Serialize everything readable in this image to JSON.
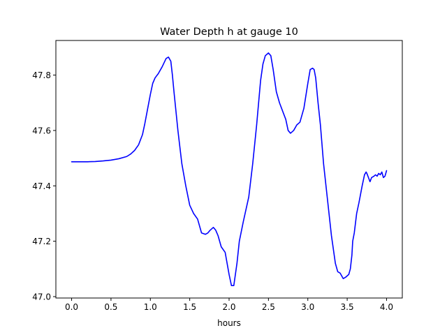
{
  "chart_data": {
    "type": "line",
    "title": "Water Depth h at gauge 10",
    "xlabel": "hours",
    "ylabel": "",
    "xlim": [
      -0.2,
      4.2
    ],
    "ylim": [
      46.995,
      47.925
    ],
    "xticks": [
      0.0,
      0.5,
      1.0,
      1.5,
      2.0,
      2.5,
      3.0,
      3.5,
      4.0
    ],
    "xtick_labels": [
      "0.0",
      "0.5",
      "1.0",
      "1.5",
      "2.0",
      "2.5",
      "3.0",
      "3.5",
      "4.0"
    ],
    "yticks": [
      47.0,
      47.2,
      47.4,
      47.6,
      47.8
    ],
    "ytick_labels": [
      "47.0",
      "47.2",
      "47.4",
      "47.6",
      "47.8"
    ],
    "grid": false,
    "series": [
      {
        "color": "#0000ff",
        "x": [
          0.0,
          0.1,
          0.2,
          0.3,
          0.4,
          0.5,
          0.6,
          0.7,
          0.75,
          0.8,
          0.85,
          0.9,
          0.93,
          0.96,
          1.0,
          1.03,
          1.06,
          1.1,
          1.15,
          1.2,
          1.23,
          1.26,
          1.28,
          1.3,
          1.35,
          1.4,
          1.45,
          1.5,
          1.55,
          1.6,
          1.65,
          1.7,
          1.73,
          1.76,
          1.8,
          1.83,
          1.86,
          1.9,
          1.95,
          2.0,
          2.03,
          2.06,
          2.08,
          2.1,
          2.13,
          2.18,
          2.25,
          2.3,
          2.35,
          2.4,
          2.43,
          2.46,
          2.5,
          2.53,
          2.56,
          2.6,
          2.64,
          2.68,
          2.72,
          2.75,
          2.78,
          2.82,
          2.86,
          2.9,
          2.95,
          3.0,
          3.03,
          3.06,
          3.08,
          3.1,
          3.13,
          3.16,
          3.2,
          3.25,
          3.3,
          3.35,
          3.38,
          3.41,
          3.45,
          3.48,
          3.5,
          3.52,
          3.54,
          3.56,
          3.57,
          3.59,
          3.62,
          3.65,
          3.69,
          3.72,
          3.74,
          3.75,
          3.77,
          3.79,
          3.81,
          3.84,
          3.86,
          3.88,
          3.9,
          3.92,
          3.94,
          3.96,
          3.98,
          4.0
        ],
        "y": [
          47.487,
          47.487,
          47.487,
          47.488,
          47.49,
          47.493,
          47.498,
          47.506,
          47.515,
          47.528,
          47.548,
          47.585,
          47.625,
          47.67,
          47.73,
          47.77,
          47.79,
          47.805,
          47.83,
          47.86,
          47.865,
          47.85,
          47.8,
          47.74,
          47.6,
          47.48,
          47.4,
          47.33,
          47.3,
          47.28,
          47.23,
          47.225,
          47.23,
          47.24,
          47.25,
          47.24,
          47.22,
          47.18,
          47.16,
          47.08,
          47.04,
          47.04,
          47.08,
          47.12,
          47.2,
          47.27,
          47.36,
          47.48,
          47.62,
          47.78,
          47.84,
          47.87,
          47.88,
          47.87,
          47.82,
          47.74,
          47.7,
          47.67,
          47.64,
          47.6,
          47.59,
          47.6,
          47.62,
          47.63,
          47.68,
          47.77,
          47.82,
          47.825,
          47.82,
          47.79,
          47.7,
          47.62,
          47.48,
          47.35,
          47.22,
          47.12,
          47.09,
          47.085,
          47.065,
          47.07,
          47.075,
          47.08,
          47.1,
          47.15,
          47.2,
          47.23,
          47.3,
          47.34,
          47.4,
          47.44,
          47.45,
          47.445,
          47.43,
          47.415,
          47.43,
          47.435,
          47.44,
          47.435,
          47.445,
          47.44,
          47.45,
          47.43,
          47.435,
          47.455
        ]
      }
    ]
  }
}
